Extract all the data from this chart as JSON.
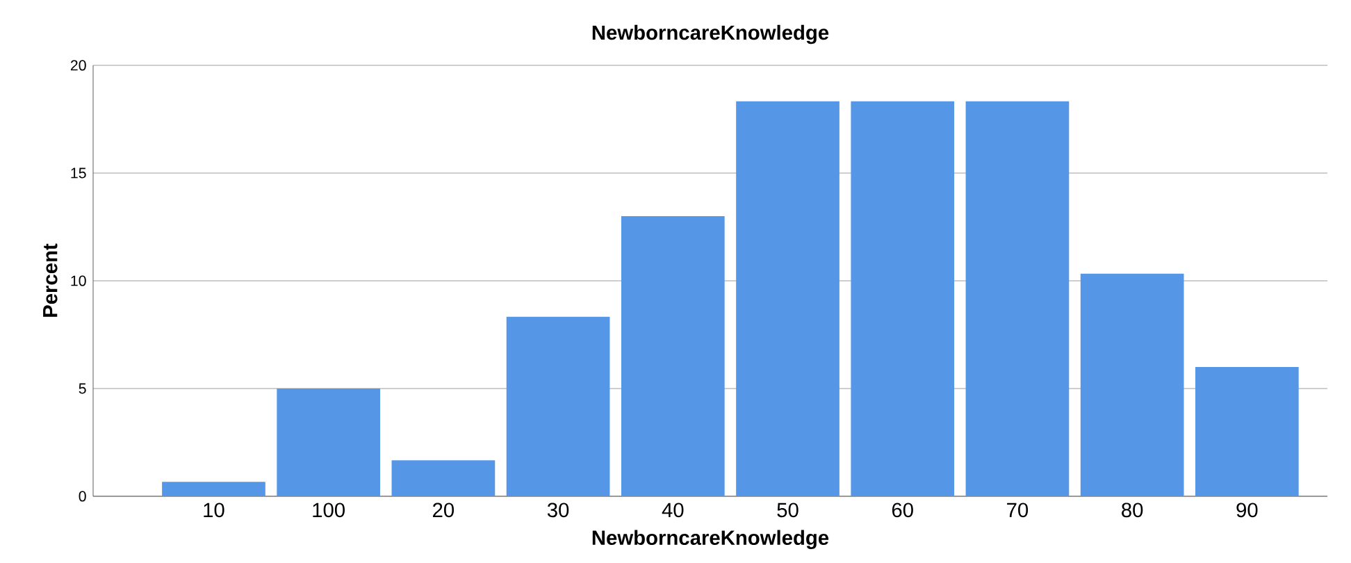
{
  "chart_data": {
    "type": "bar",
    "title": "NewborncareKnowledge",
    "xlabel": "NewborncareKnowledge",
    "ylabel": "Percent",
    "categories": [
      "10",
      "100",
      "20",
      "30",
      "40",
      "50",
      "60",
      "70",
      "80",
      "90"
    ],
    "values": [
      0.67,
      5.0,
      1.67,
      8.33,
      13.0,
      18.33,
      18.33,
      18.33,
      10.33,
      6.0
    ],
    "color": "#5596e6",
    "ylim": [
      0,
      20
    ],
    "yticks": [
      0,
      5,
      10,
      15,
      20
    ],
    "grid": "y"
  }
}
